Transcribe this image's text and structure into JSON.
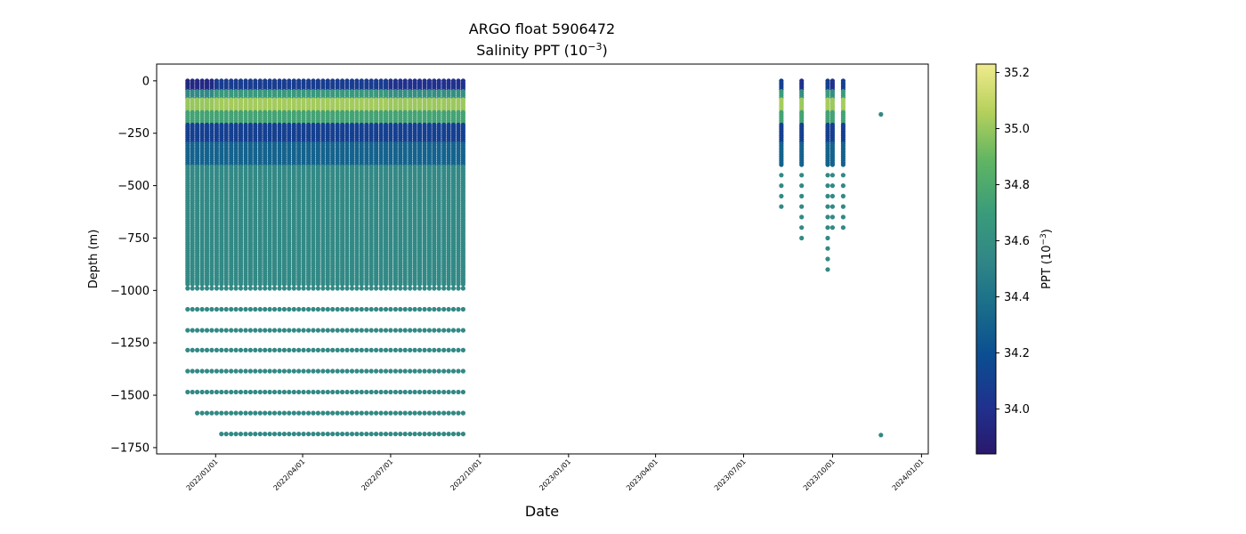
{
  "chart_data": {
    "type": "scatter",
    "title": "ARGO float 5906472",
    "subtitle_prefix": "Salinity PPT (10",
    "subtitle_exp": "−3",
    "subtitle_suffix": ")",
    "xlabel": "Date",
    "ylabel": "Depth (m)",
    "xlim": [
      "2021-11-01",
      "2024-01-08"
    ],
    "ylim": [
      -1780,
      80
    ],
    "grid": false,
    "x_ticks": [
      "2022/01/01",
      "2022/04/01",
      "2022/07/01",
      "2022/10/01",
      "2023/01/01",
      "2023/04/01",
      "2023/07/01",
      "2023/10/01",
      "2024/01/01"
    ],
    "y_ticks": [
      0,
      -250,
      -500,
      -750,
      -1000,
      -1250,
      -1500,
      -1750
    ],
    "y_tick_labels": [
      "0",
      "−250",
      "−500",
      "−750",
      "−1000",
      "−1250",
      "−1500",
      "−1750"
    ],
    "colorbar": {
      "label_prefix": "PPT (10",
      "label_exp": "−3",
      "label_suffix": ")",
      "colormap": "haline",
      "range": [
        33.84,
        35.23
      ],
      "ticks": [
        34.0,
        34.2,
        34.4,
        34.6,
        34.8,
        35.0,
        35.2
      ],
      "tick_labels": [
        "34.0",
        "34.2",
        "34.4",
        "34.6",
        "34.8",
        "35.0",
        "35.2"
      ]
    },
    "profiles": {
      "regular": {
        "start": "2021-12-03",
        "interval_days": 5,
        "count": 58,
        "dense_depth_range": [
          0,
          -975
        ],
        "dense_step_m": 10,
        "deep_depths": [
          -990,
          -1090,
          -1190,
          -1285,
          -1385,
          -1485
        ],
        "depth_1585_from_index": 2,
        "depth_1685_from_index": 7,
        "deep_salinity": 34.55
      },
      "late": [
        {
          "date": "2023-08-09",
          "max_depth": -640
        },
        {
          "date": "2023-08-30",
          "max_depth": -790
        },
        {
          "date": "2023-09-26",
          "max_depth": -945
        },
        {
          "date": "2023-10-01",
          "max_depth": -745
        },
        {
          "date": "2023-10-12",
          "max_depth": -745
        },
        {
          "date": "2023-11-20",
          "points": [
            [
              -160,
              34.55
            ],
            [
              -1690,
              34.55
            ]
          ]
        }
      ]
    }
  }
}
